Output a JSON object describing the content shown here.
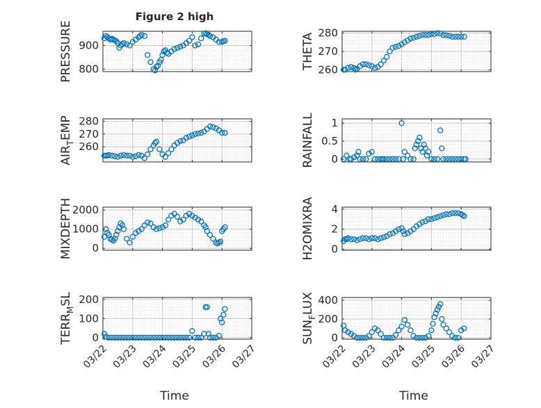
{
  "figure": {
    "title": "Figure 2 high",
    "xlabel": "Time",
    "x_ticks": [
      "03/22",
      "03/23",
      "03/24",
      "03/25",
      "03/26",
      "03/27"
    ],
    "x_range": [
      0,
      5
    ],
    "marker_color": "#0072BD",
    "axis_color": "#262626",
    "grid_color": "#dddddd"
  },
  "chart_data": [
    {
      "id": "pressure",
      "type": "scatter",
      "col": 0,
      "row": 0,
      "ylabel": "PRESSURE",
      "ylim": [
        790,
        960
      ],
      "yticks": [
        800,
        900
      ],
      "x": [
        0.05,
        0.1,
        0.15,
        0.2,
        0.25,
        0.3,
        0.35,
        0.4,
        0.45,
        0.5,
        0.55,
        0.6,
        0.65,
        0.7,
        0.8,
        0.9,
        1.0,
        1.1,
        1.2,
        1.25,
        1.3,
        1.4,
        1.5,
        1.6,
        1.7,
        1.75,
        1.8,
        1.85,
        1.9,
        1.95,
        2.0,
        2.05,
        2.1,
        2.15,
        2.2,
        2.3,
        2.4,
        2.5,
        2.6,
        2.7,
        2.8,
        2.9,
        3.0,
        3.1,
        3.2,
        3.3,
        3.4,
        3.45,
        3.5,
        3.55,
        3.6,
        3.7,
        3.8,
        3.9,
        4.0,
        4.05,
        4.1
      ],
      "y": [
        930,
        940,
        935,
        930,
        925,
        928,
        925,
        922,
        918,
        910,
        890,
        900,
        905,
        910,
        905,
        900,
        915,
        925,
        935,
        940,
        945,
        940,
        860,
        830,
        800,
        795,
        810,
        815,
        830,
        840,
        860,
        875,
        880,
        870,
        865,
        875,
        885,
        890,
        895,
        900,
        910,
        920,
        935,
        900,
        905,
        930,
        950,
        952,
        948,
        945,
        940,
        935,
        925,
        915,
        915,
        918,
        920
      ]
    },
    {
      "id": "theta",
      "type": "scatter",
      "col": 1,
      "row": 0,
      "ylabel": "THETA",
      "ylim": [
        259,
        281
      ],
      "yticks": [
        260,
        270,
        280
      ],
      "x": [
        0.05,
        0.1,
        0.2,
        0.3,
        0.4,
        0.45,
        0.5,
        0.6,
        0.7,
        0.8,
        0.9,
        1.0,
        1.1,
        1.2,
        1.3,
        1.4,
        1.5,
        1.6,
        1.7,
        1.8,
        1.9,
        2.0,
        2.1,
        2.2,
        2.3,
        2.4,
        2.5,
        2.6,
        2.7,
        2.8,
        2.9,
        3.0,
        3.1,
        3.2,
        3.3,
        3.4,
        3.5,
        3.6,
        3.7,
        3.8,
        3.9,
        4.0,
        4.1
      ],
      "y": [
        260,
        260,
        261,
        261.5,
        261,
        260,
        260.5,
        262,
        263,
        263,
        262.5,
        262,
        261,
        261.5,
        263,
        265,
        267,
        270,
        272,
        272.5,
        273,
        274,
        275,
        276,
        277,
        277.5,
        278,
        278.5,
        279,
        279,
        279,
        279.5,
        279.5,
        280,
        279.8,
        279,
        278.8,
        278.5,
        278,
        278,
        278,
        278,
        278
      ]
    },
    {
      "id": "air_temp",
      "type": "scatter",
      "col": 0,
      "row": 1,
      "ylabel": "AIR_TEMP",
      "ylabel_main": "AIR",
      "ylabel_sub": "T",
      "ylabel_end": "EMP",
      "ylim": [
        248,
        282
      ],
      "yticks": [
        260,
        270,
        280
      ],
      "x": [
        0.05,
        0.1,
        0.15,
        0.2,
        0.3,
        0.4,
        0.5,
        0.6,
        0.7,
        0.8,
        0.9,
        1.0,
        1.1,
        1.2,
        1.3,
        1.4,
        1.5,
        1.6,
        1.7,
        1.75,
        1.8,
        1.9,
        2.0,
        2.1,
        2.2,
        2.3,
        2.4,
        2.5,
        2.6,
        2.7,
        2.8,
        2.9,
        3.0,
        3.1,
        3.2,
        3.3,
        3.4,
        3.5,
        3.6,
        3.7,
        3.8,
        3.9,
        4.0,
        4.1
      ],
      "y": [
        253,
        253,
        253,
        253.5,
        253,
        252.5,
        252,
        253,
        253.5,
        253,
        253,
        252,
        252.5,
        253.5,
        253,
        251,
        254,
        258,
        261,
        263,
        264,
        258,
        254,
        252,
        255,
        258,
        261,
        263,
        264.5,
        265,
        267,
        268,
        269,
        270,
        270.5,
        271,
        272,
        274,
        276,
        275.5,
        274.5,
        273,
        271,
        271
      ]
    },
    {
      "id": "rainfall",
      "type": "scatter",
      "col": 1,
      "row": 1,
      "ylabel": "RAINFALL",
      "ylim": [
        -0.08,
        1.12
      ],
      "yticks": [
        0,
        0.5,
        1
      ],
      "x": [
        0.05,
        0.15,
        0.25,
        0.3,
        0.4,
        0.5,
        0.55,
        0.6,
        0.7,
        0.8,
        0.9,
        1.0,
        1.1,
        1.2,
        1.3,
        1.35,
        1.4,
        1.5,
        1.6,
        1.7,
        1.8,
        1.9,
        2.0,
        2.05,
        2.1,
        2.2,
        2.3,
        2.4,
        2.45,
        2.5,
        2.55,
        2.6,
        2.65,
        2.7,
        2.75,
        2.8,
        2.85,
        2.9,
        3.0,
        3.1,
        3.2,
        3.3,
        3.35,
        3.4,
        3.5,
        3.6,
        3.7,
        3.8,
        3.9,
        4.0,
        4.1,
        4.15
      ],
      "y": [
        0,
        0.1,
        0,
        0,
        0.05,
        0.1,
        0.2,
        0,
        0,
        0,
        0.15,
        0.2,
        0,
        0,
        0,
        0,
        0,
        0,
        0,
        0,
        0,
        0,
        1.0,
        0,
        0.2,
        0.1,
        0,
        0,
        0.3,
        0.4,
        0.5,
        0.6,
        0.3,
        0.2,
        0.4,
        0.3,
        0.1,
        0.2,
        0,
        0,
        0,
        0.8,
        0.3,
        0,
        0,
        0,
        0,
        0,
        0,
        0,
        0,
        0
      ]
    },
    {
      "id": "mixdepth",
      "type": "scatter",
      "col": 0,
      "row": 2,
      "ylabel": "MIXDEPTH",
      "ylim": [
        -100,
        2150
      ],
      "yticks": [
        0,
        1000,
        2000
      ],
      "x": [
        0.05,
        0.1,
        0.15,
        0.2,
        0.25,
        0.3,
        0.35,
        0.4,
        0.45,
        0.5,
        0.55,
        0.6,
        0.65,
        0.7,
        0.8,
        0.9,
        1.0,
        1.1,
        1.2,
        1.3,
        1.4,
        1.5,
        1.6,
        1.7,
        1.8,
        1.9,
        2.0,
        2.1,
        2.2,
        2.3,
        2.4,
        2.5,
        2.6,
        2.7,
        2.8,
        2.9,
        3.0,
        3.1,
        3.2,
        3.3,
        3.4,
        3.45,
        3.5,
        3.6,
        3.7,
        3.8,
        3.85,
        3.9,
        3.95,
        4.0,
        4.05,
        4.1
      ],
      "y": [
        600,
        1000,
        800,
        700,
        500,
        450,
        400,
        500,
        700,
        900,
        1100,
        1300,
        1200,
        1000,
        500,
        300,
        600,
        800,
        900,
        1000,
        1200,
        1350,
        1300,
        1100,
        1000,
        1050,
        1100,
        1200,
        1500,
        1700,
        1800,
        1650,
        1400,
        1500,
        1700,
        1800,
        1700,
        1600,
        1500,
        1400,
        1200,
        1100,
        900,
        700,
        500,
        300,
        250,
        300,
        350,
        900,
        1000,
        1100
      ]
    },
    {
      "id": "h2omixra",
      "type": "scatter",
      "col": 1,
      "row": 2,
      "ylabel": "H2OMIXRA",
      "ylim": [
        -0.1,
        4.2
      ],
      "yticks": [
        0,
        2,
        4
      ],
      "x": [
        0.05,
        0.1,
        0.15,
        0.2,
        0.3,
        0.4,
        0.5,
        0.6,
        0.7,
        0.8,
        0.9,
        1.0,
        1.1,
        1.2,
        1.3,
        1.4,
        1.5,
        1.6,
        1.7,
        1.8,
        1.9,
        2.0,
        2.05,
        2.1,
        2.2,
        2.3,
        2.4,
        2.5,
        2.6,
        2.7,
        2.8,
        2.9,
        3.0,
        3.1,
        3.2,
        3.3,
        3.4,
        3.5,
        3.6,
        3.7,
        3.8,
        3.9,
        4.0,
        4.05,
        4.1
      ],
      "y": [
        0.8,
        1.0,
        1.0,
        1.1,
        1.0,
        1.0,
        0.9,
        1.0,
        1.1,
        1.1,
        1.0,
        1.1,
        1.1,
        1.0,
        1.1,
        1.2,
        1.3,
        1.5,
        1.6,
        1.8,
        2.0,
        2.1,
        1.8,
        1.5,
        1.6,
        1.8,
        2.0,
        2.3,
        2.5,
        2.7,
        2.8,
        3.0,
        3.0,
        3.1,
        3.2,
        3.3,
        3.4,
        3.5,
        3.5,
        3.6,
        3.6,
        3.6,
        3.5,
        3.4,
        3.3
      ]
    },
    {
      "id": "terr_msl",
      "type": "scatter",
      "col": 0,
      "row": 3,
      "ylabel": "TERR_MSL",
      "ylabel_main": "TERR",
      "ylabel_sub": "M",
      "ylabel_end": "SL",
      "ylim": [
        -8,
        210
      ],
      "yticks": [
        0,
        100,
        200
      ],
      "x": [
        0.05,
        0.1,
        0.2,
        0.3,
        0.4,
        0.5,
        0.6,
        0.7,
        0.8,
        0.9,
        1.0,
        1.1,
        1.2,
        1.3,
        1.4,
        1.5,
        1.6,
        1.7,
        1.8,
        1.9,
        2.0,
        2.1,
        2.2,
        2.3,
        2.4,
        2.5,
        2.6,
        2.7,
        2.8,
        2.9,
        3.0,
        3.1,
        3.2,
        3.3,
        3.4,
        3.45,
        3.5,
        3.55,
        3.6,
        3.7,
        3.8,
        3.9,
        3.95,
        4.0,
        4.05,
        4.1
      ],
      "y": [
        20,
        5,
        0,
        0,
        0,
        0,
        0,
        0,
        0,
        0,
        0,
        0,
        0,
        0,
        0,
        0,
        0,
        0,
        0,
        0,
        0,
        0,
        0,
        0,
        0,
        0,
        0,
        0,
        0,
        0,
        35,
        0,
        0,
        0,
        20,
        160,
        160,
        20,
        0,
        0,
        0,
        10,
        100,
        80,
        120,
        150
      ]
    },
    {
      "id": "sun_flux",
      "type": "scatter",
      "col": 1,
      "row": 3,
      "ylabel": "SUN_FLUX",
      "ylabel_main": "SUN",
      "ylabel_sub": "F",
      "ylabel_end": "LUX",
      "ylim": [
        -15,
        430
      ],
      "yticks": [
        0,
        200,
        400
      ],
      "x": [
        0.05,
        0.1,
        0.2,
        0.3,
        0.4,
        0.5,
        0.6,
        0.7,
        0.8,
        0.9,
        1.0,
        1.1,
        1.2,
        1.3,
        1.4,
        1.5,
        1.6,
        1.7,
        1.8,
        1.9,
        2.0,
        2.1,
        2.2,
        2.3,
        2.4,
        2.5,
        2.6,
        2.7,
        2.8,
        2.9,
        3.0,
        3.05,
        3.1,
        3.15,
        3.2,
        3.25,
        3.3,
        3.35,
        3.4,
        3.5,
        3.6,
        3.7,
        3.8,
        3.9,
        4.0,
        4.1
      ],
      "y": [
        130,
        80,
        60,
        40,
        20,
        0,
        0,
        0,
        0,
        20,
        60,
        100,
        80,
        40,
        0,
        0,
        0,
        0,
        30,
        80,
        120,
        190,
        140,
        80,
        20,
        0,
        0,
        0,
        0,
        20,
        80,
        150,
        220,
        260,
        300,
        330,
        360,
        200,
        140,
        100,
        60,
        20,
        0,
        0,
        80,
        100
      ]
    }
  ]
}
